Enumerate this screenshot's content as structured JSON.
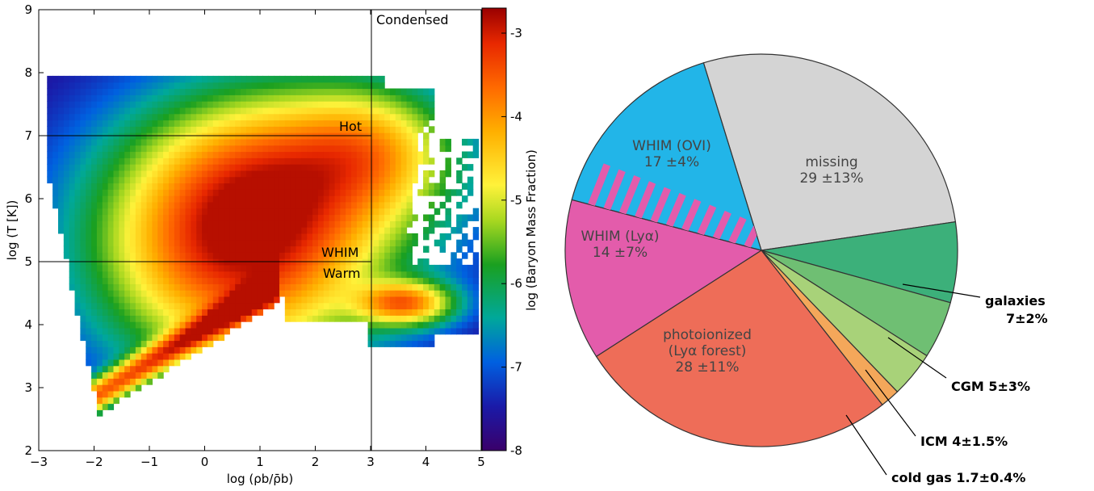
{
  "chart_data": [
    {
      "type": "heatmap",
      "xlabel": "log (ρb/ρ̄b)",
      "ylabel": "log (T [K])",
      "xlim": [
        -3,
        5
      ],
      "ylim": [
        2,
        9
      ],
      "x_ticks": [
        "−3",
        "−2",
        "−1",
        "0",
        "1",
        "2",
        "3",
        "4",
        "5"
      ],
      "y_ticks": [
        "2",
        "3",
        "4",
        "5",
        "6",
        "7",
        "8",
        "9"
      ],
      "colorbar": {
        "label": "log (Baryon Mass Fraction)",
        "range": [
          -8,
          -2.7
        ],
        "ticks": [
          "-3",
          "-4",
          "-5",
          "-6",
          "-7",
          "-8"
        ]
      },
      "divider_lines": {
        "log_T": [
          7,
          5
        ],
        "log_rho": 3
      },
      "region_labels": {
        "condensed": "Condensed",
        "hot": "Hot",
        "whim": "WHIM",
        "warm": "Warm"
      }
    },
    {
      "type": "pie",
      "slices": [
        {
          "key": "missing",
          "label": "missing",
          "value_text": "29 ±13%",
          "value": 29,
          "color": "#d4d4d4"
        },
        {
          "key": "galaxies",
          "label": "galaxies",
          "value_text": "7±2%",
          "value": 7,
          "color": "#3cb07a"
        },
        {
          "key": "cgm",
          "label": "CGM",
          "value_text": "5±3%",
          "value": 5,
          "color": "#6fbf73"
        },
        {
          "key": "icm",
          "label": "ICM",
          "value_text": "4±1.5%",
          "value": 4,
          "color": "#a8d279"
        },
        {
          "key": "cold_gas",
          "label": "cold gas",
          "value_text": "1.7±0.4%",
          "value": 1.7,
          "color": "#f4a75a"
        },
        {
          "key": "photoionized",
          "label": "photoionized",
          "label_line2": "(Lyα forest)",
          "value_text": "28 ±11%",
          "value": 28,
          "color": "#ee6d58"
        },
        {
          "key": "whim_lya",
          "label": "WHIM (Lyα)",
          "value_text": "14 ±7%",
          "value": 14,
          "color": "#e35cab"
        },
        {
          "key": "whim_ovi",
          "label": "WHIM (OVI)",
          "value_text": "17 ±4%",
          "value": 17,
          "color": "#22b5e8"
        }
      ],
      "callouts": {
        "galaxies": "galaxies",
        "galaxies_value": "7±2%",
        "cgm": "CGM 5±3%",
        "icm": "ICM 4±1.5%",
        "cold_gas": "cold gas 1.7±0.4%"
      }
    }
  ]
}
